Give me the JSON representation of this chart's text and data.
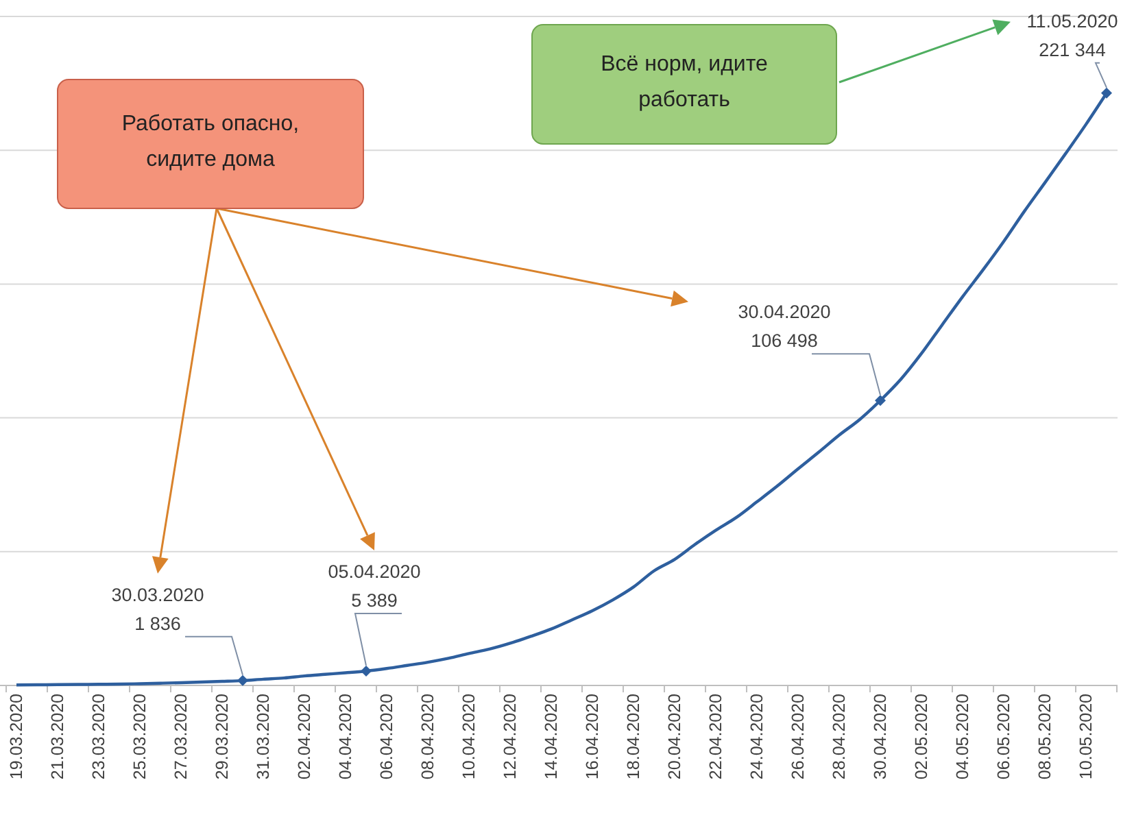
{
  "chart_data": {
    "type": "line",
    "categories": [
      "19.03.2020",
      null,
      "21.03.2020",
      null,
      "23.03.2020",
      null,
      "25.03.2020",
      null,
      "27.03.2020",
      null,
      "29.03.2020",
      null,
      "31.03.2020",
      null,
      "02.04.2020",
      null,
      "04.04.2020",
      null,
      "06.04.2020",
      null,
      "08.04.2020",
      null,
      "10.04.2020",
      null,
      "12.04.2020",
      null,
      "14.04.2020",
      null,
      "16.04.2020",
      null,
      "18.04.2020",
      null,
      "20.04.2020",
      null,
      "22.04.2020",
      null,
      "24.04.2020",
      null,
      "26.04.2020",
      null,
      "28.04.2020",
      null,
      "30.04.2020",
      null,
      "02.05.2020",
      null,
      "04.05.2020",
      null,
      "06.05.2020",
      null,
      "08.05.2020",
      null,
      "10.05.2020",
      null
    ],
    "series": [
      {
        "color": "#2e5f9e",
        "values": [
          199,
          253,
          306,
          367,
          438,
          495,
          658,
          840,
          1036,
          1264,
          1534,
          1836,
          2337,
          2777,
          3548,
          4149,
          4731,
          5389,
          6343,
          7497,
          8672,
          10131,
          11917,
          13584,
          15770,
          18328,
          21102,
          24490,
          27938,
          32008,
          36793,
          42853,
          47121,
          52763,
          57999,
          62773,
          68622,
          74588,
          80949,
          87147,
          93558,
          99399,
          106498,
          114431,
          124054,
          134687,
          145268,
          155370,
          165929,
          177160,
          187859,
          198676,
          209688,
          221344
        ],
        "value_labels": [
          null,
          null,
          null,
          null,
          null,
          null,
          null,
          null,
          null,
          null,
          null,
          "30.03.2020\n1 836",
          null,
          null,
          null,
          null,
          null,
          "05.04.2020\n5 389",
          null,
          null,
          null,
          null,
          null,
          null,
          null,
          null,
          null,
          null,
          null,
          null,
          null,
          null,
          null,
          null,
          null,
          null,
          null,
          null,
          null,
          null,
          null,
          null,
          "30.04.2020\n106 498",
          null,
          null,
          null,
          null,
          null,
          null,
          null,
          null,
          null,
          null,
          "11.05.2020\n221 344"
        ]
      }
    ],
    "ylim": [
      0,
      250000
    ],
    "yticks": [
      {
        "value": 0,
        "label": null
      },
      {
        "value": 50000,
        "label": null
      },
      {
        "value": 100000,
        "label": null
      },
      {
        "value": 150000,
        "label": null
      },
      {
        "value": 200000,
        "label": null
      },
      {
        "value": 250000,
        "label": null
      }
    ],
    "tick_labels": "x",
    "grid": "y",
    "line_style": "solid",
    "annotations": [
      "Работать опасно,\nсидите дома",
      "Всё норм, идите\nработать"
    ]
  }
}
